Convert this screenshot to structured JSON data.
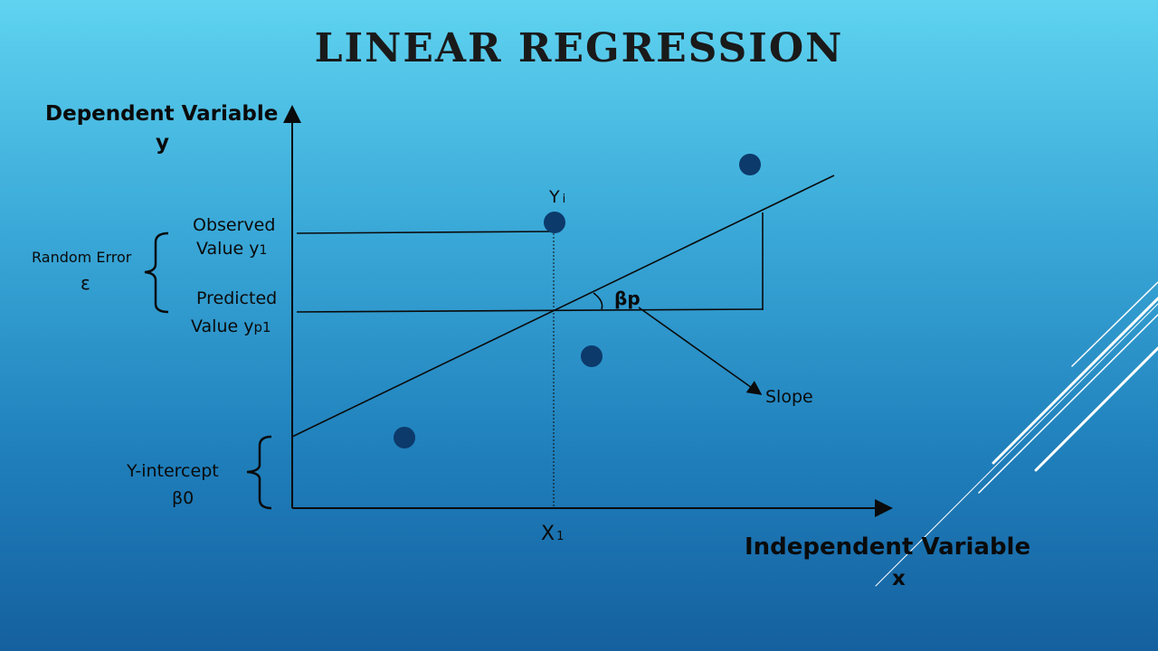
{
  "title": "LINEAR REGRESSION",
  "y_axis": {
    "label": "Dependent Variable",
    "symbol": "y"
  },
  "x_axis": {
    "label": "Independent Variable",
    "symbol": "x"
  },
  "labels": {
    "observed_line1": "Observed",
    "observed_line2": "Value  y",
    "observed_sub": "1",
    "predicted_line1": "Predicted",
    "predicted_line2": "Value  y",
    "predicted_sub": "p1",
    "random_error": "Random Error",
    "epsilon": "ε",
    "y_intercept": "Y-intercept",
    "beta0": "β0",
    "yi": "Y",
    "yi_sub": "i",
    "x1": "X",
    "x1_sub": "1",
    "beta_p": "βp",
    "slope": "Slope"
  },
  "colors": {
    "point": "#0c3a6b",
    "line": "#0a0a0a",
    "accent_stripes": "#ffffff"
  }
}
